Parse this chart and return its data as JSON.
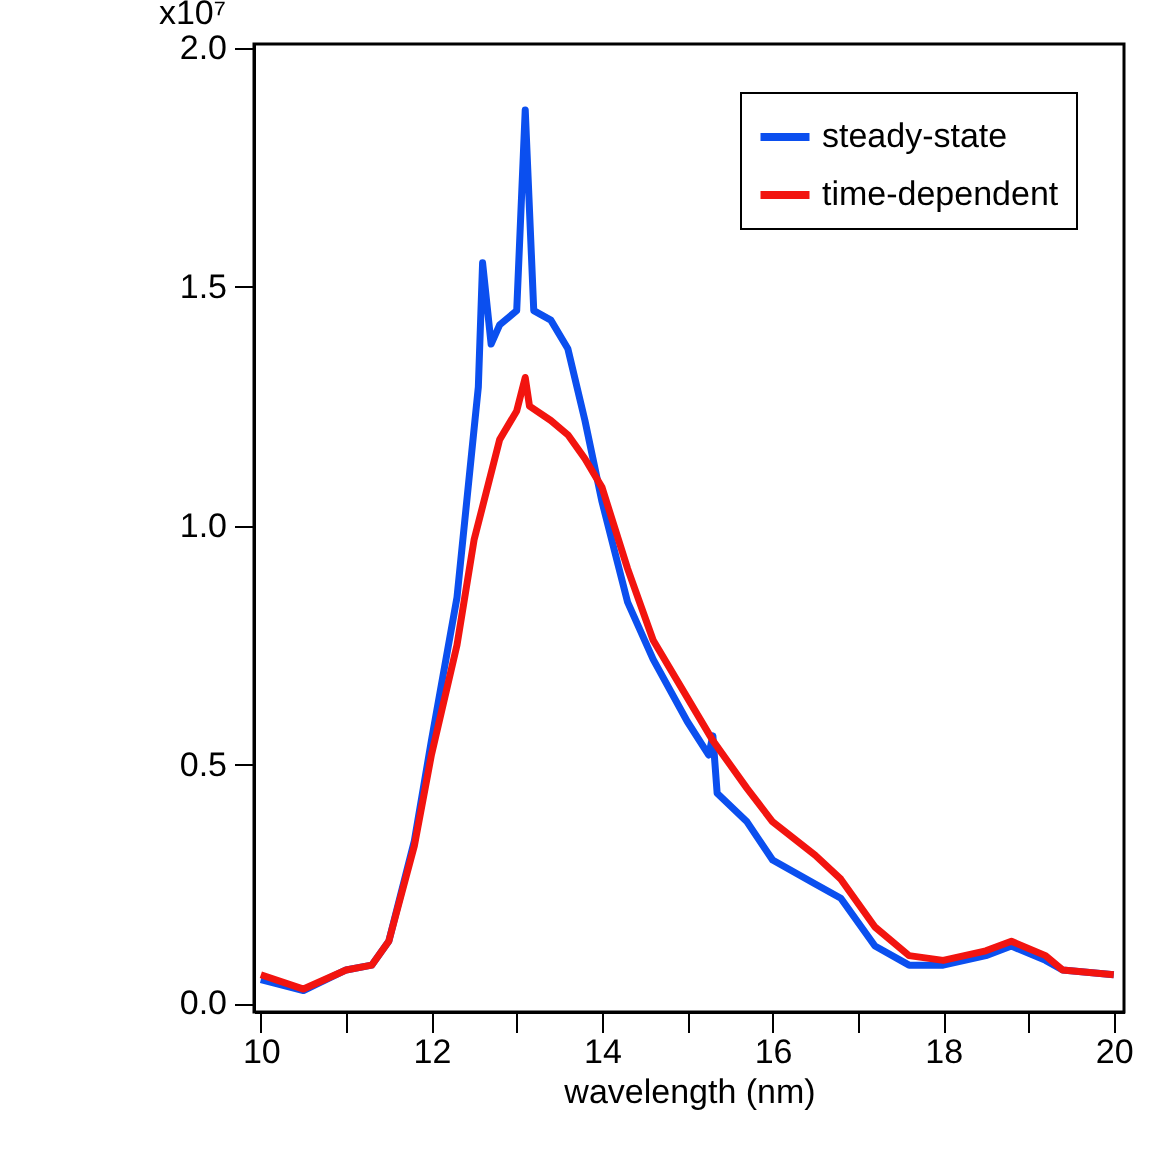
{
  "chart_data": {
    "type": "line",
    "xlabel": "wavelength (nm)",
    "xlim": [
      9.92,
      20.12
    ],
    "ylim": [
      -0.018,
      2.008
    ],
    "xticks": [
      10,
      {
        "value": 11,
        "label": null
      },
      12,
      {
        "value": 13,
        "label": null
      },
      14,
      {
        "value": 15,
        "label": null
      },
      16,
      {
        "value": 17,
        "label": null
      },
      18,
      {
        "value": 19,
        "label": null
      },
      20
    ],
    "yticks": [
      {
        "value": 0,
        "label": "0.0"
      },
      0.5,
      {
        "value": 1,
        "label": "1.0"
      },
      1.5,
      {
        "value": 2,
        "label": "2.0"
      }
    ],
    "ylabel": "x10⁷",
    "grid": false,
    "legend": "top right",
    "line_style": "solid",
    "marker": "none",
    "series": [
      {
        "name": "steady-state",
        "color": "#0b4fef",
        "x": [
          10,
          10.5,
          11,
          11.3,
          11.5,
          11.8,
          12,
          12.3,
          12.55,
          12.6,
          12.7,
          12.8,
          13,
          13.1,
          13.2,
          13.4,
          13.6,
          13.8,
          14,
          14.3,
          14.6,
          15,
          15.25,
          15.3,
          15.35,
          15.7,
          16,
          16.5,
          16.8,
          17.2,
          17.6,
          18,
          18.5,
          18.8,
          19.2,
          19.4,
          20
        ],
        "values": [
          0.05,
          0.027,
          0.07,
          0.08,
          0.13,
          0.34,
          0.55,
          0.85,
          1.29,
          1.55,
          1.38,
          1.42,
          1.45,
          1.87,
          1.45,
          1.43,
          1.37,
          1.22,
          1.05,
          0.84,
          0.72,
          0.59,
          0.52,
          0.56,
          0.44,
          0.38,
          0.3,
          0.25,
          0.22,
          0.12,
          0.08,
          0.08,
          0.1,
          0.12,
          0.09,
          0.07,
          0.06
        ]
      },
      {
        "name": "time-dependent",
        "color": "#f2140f",
        "x": [
          10,
          10.5,
          11,
          11.3,
          11.5,
          11.8,
          12,
          12.3,
          12.5,
          12.8,
          13,
          13.1,
          13.15,
          13.4,
          13.6,
          13.8,
          14,
          14.3,
          14.6,
          15,
          15.3,
          15.7,
          16,
          16.5,
          16.8,
          17.2,
          17.6,
          18,
          18.5,
          18.8,
          19.2,
          19.4,
          20
        ],
        "values": [
          0.06,
          0.03,
          0.07,
          0.08,
          0.13,
          0.33,
          0.52,
          0.75,
          0.97,
          1.18,
          1.24,
          1.31,
          1.25,
          1.22,
          1.19,
          1.14,
          1.08,
          0.91,
          0.76,
          0.64,
          0.55,
          0.45,
          0.38,
          0.31,
          0.26,
          0.16,
          0.1,
          0.09,
          0.11,
          0.13,
          0.1,
          0.07,
          0.06
        ]
      }
    ]
  }
}
